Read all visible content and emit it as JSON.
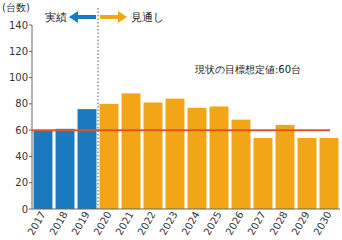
{
  "chart_data": {
    "type": "bar",
    "ylabel": "(台数)",
    "categories": [
      "2017",
      "2018",
      "2019",
      "2020",
      "2021",
      "2022",
      "2023",
      "2024",
      "2025",
      "2026",
      "2027",
      "2028",
      "2029",
      "2030"
    ],
    "series": [
      {
        "name": "実績",
        "color": "#1b79c0",
        "values": [
          60,
          61,
          76,
          null,
          null,
          null,
          null,
          null,
          null,
          null,
          null,
          null,
          null,
          null
        ]
      },
      {
        "name": "見通し",
        "color": "#f2a516",
        "values": [
          null,
          null,
          null,
          80,
          88,
          81,
          84,
          77,
          78,
          68,
          54,
          64,
          54,
          54
        ]
      }
    ],
    "reference_line": {
      "value": 60,
      "label": "現状の目標想定値:60台",
      "color": "#e8522a"
    },
    "ylim": [
      0,
      140
    ],
    "yticks": [
      0,
      20,
      40,
      60,
      80,
      100,
      120,
      140
    ],
    "grid": false
  }
}
